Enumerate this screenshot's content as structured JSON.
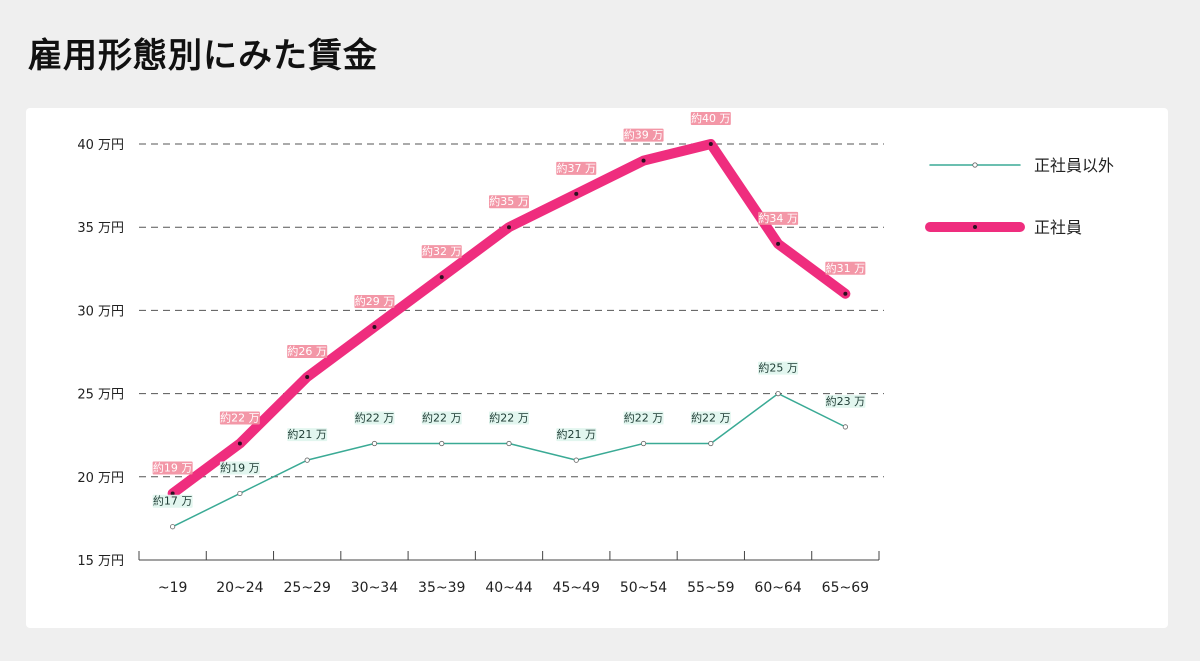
{
  "title": "雇用形態別にみた賃金",
  "chart_data": {
    "type": "line",
    "title": "雇用形態別にみた賃金",
    "xlabel": "",
    "ylabel": "",
    "categories": [
      "~19",
      "20~24",
      "25~29",
      "30~34",
      "35~39",
      "40~44",
      "45~49",
      "50~54",
      "55~59",
      "60~64",
      "65~69"
    ],
    "ylim": [
      15,
      40
    ],
    "yticks": [
      15,
      20,
      25,
      30,
      35,
      40
    ],
    "ytick_labels": [
      "15 万円",
      "20 万円",
      "25 万円",
      "30 万円",
      "35 万円",
      "40 万円"
    ],
    "grid": "horizontal-dashed",
    "legend_position": "right",
    "series": [
      {
        "name": "正社員以外",
        "color": "#3aaa95",
        "values": [
          17,
          19,
          21,
          22,
          22,
          22,
          21,
          22,
          22,
          25,
          23
        ],
        "labels": [
          "約17 万",
          "約19 万",
          "約21 万",
          "約22 万",
          "約22 万",
          "約22 万",
          "約21 万",
          "約22 万",
          "約22 万",
          "約25 万",
          "約23 万"
        ]
      },
      {
        "name": "正社員",
        "color": "#ef2d7e",
        "values": [
          19,
          22,
          26,
          29,
          32,
          35,
          37,
          39,
          40,
          34,
          31
        ],
        "labels": [
          "約19 万",
          "約22 万",
          "約26 万",
          "約29 万",
          "約32 万",
          "約35 万",
          "約37 万",
          "約39 万",
          "約40 万",
          "約34 万",
          "約31 万"
        ]
      }
    ]
  }
}
